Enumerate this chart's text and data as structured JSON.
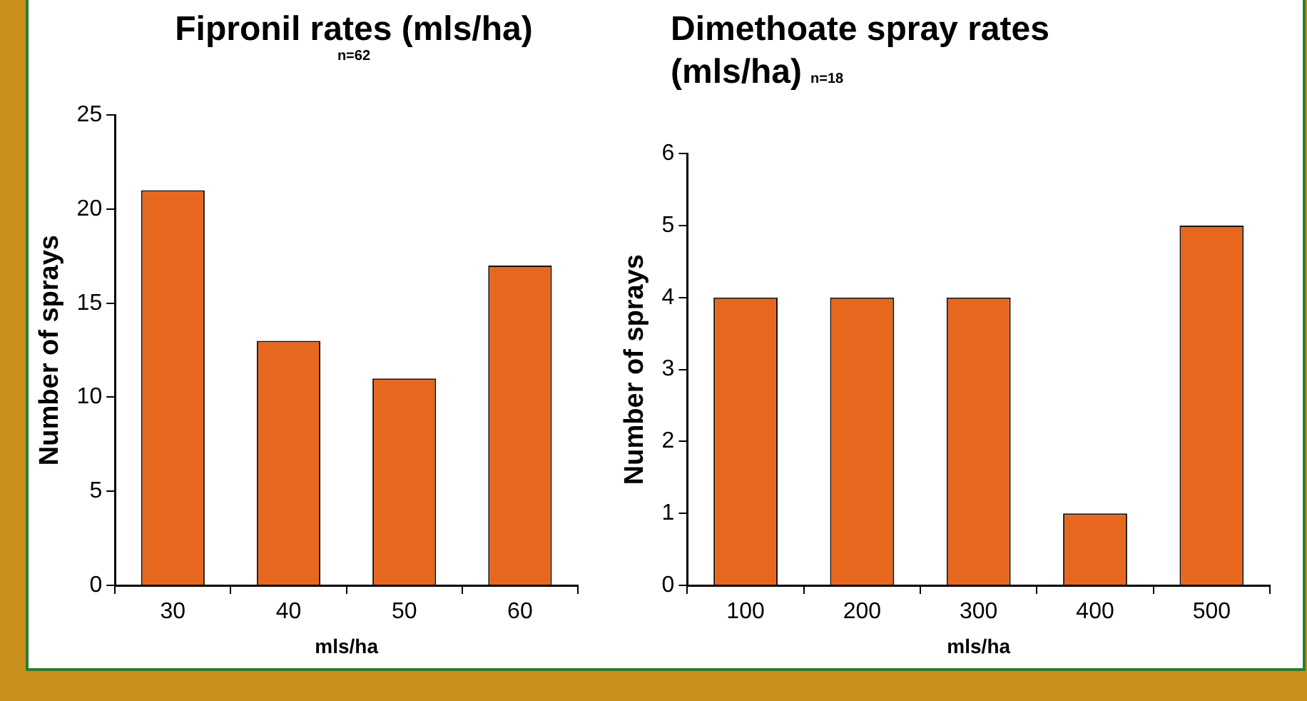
{
  "chart_data": [
    {
      "type": "bar",
      "title": "Fipronil rates (mls/ha)",
      "subtitle": "n=62",
      "xlabel": "mls/ha",
      "ylabel": "Number of sprays",
      "categories": [
        "30",
        "40",
        "50",
        "60"
      ],
      "values": [
        21,
        13,
        11,
        17
      ],
      "color": "#e8671f",
      "ylim": [
        0,
        25
      ],
      "yticks": [
        0,
        5,
        10,
        15,
        20,
        25
      ]
    },
    {
      "type": "bar",
      "title": "Dimethoate spray rates (mls/ha)",
      "subtitle": "n=18",
      "xlabel": "mls/ha",
      "ylabel": "Number of sprays",
      "categories": [
        "100",
        "200",
        "300",
        "400",
        "500"
      ],
      "values": [
        4,
        4,
        4,
        1,
        5
      ],
      "color": "#e8671f",
      "ylim": [
        0,
        6
      ],
      "yticks": [
        0,
        1,
        2,
        3,
        4,
        5,
        6
      ]
    }
  ]
}
